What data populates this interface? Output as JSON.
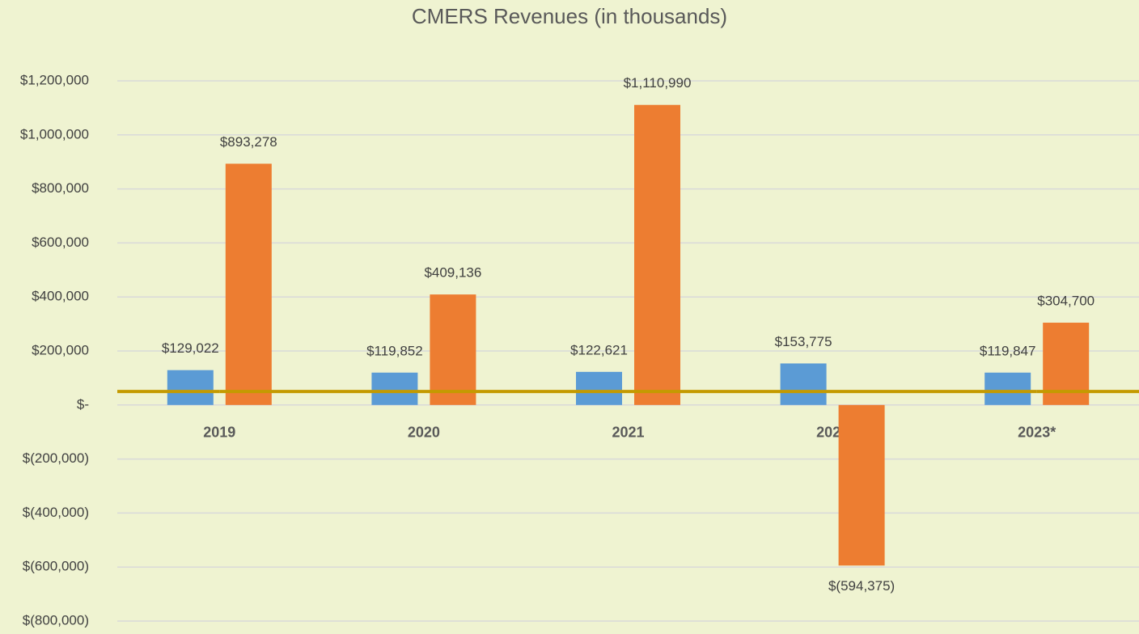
{
  "chart_data": {
    "type": "bar",
    "title": "CMERS Revenues (in thousands)",
    "categories": [
      "2019",
      "2020",
      "2021",
      "2022",
      "2023*"
    ],
    "series": [
      {
        "color": "#5b9bd5",
        "values": [
          129022,
          119852,
          122621,
          153775,
          119847
        ],
        "value_labels": [
          "$129,022",
          "$119,852",
          "$122,621",
          "$153,775",
          "$119,847"
        ]
      },
      {
        "color": "#ed7d31",
        "values": [
          893278,
          409136,
          1110990,
          -594375,
          304700
        ],
        "value_labels": [
          "$893,278",
          "$409,136",
          "$1,110,990",
          "$(594,375)",
          "$304,700"
        ]
      },
      {
        "type": "line",
        "color": "#c49a00",
        "values": [
          50000,
          50000,
          50000,
          50000,
          50000
        ]
      }
    ],
    "ylim": [
      -800000,
      1200000
    ],
    "yticks": [
      {
        "value": -800000,
        "label": "$(800,000)"
      },
      {
        "value": -600000,
        "label": "$(600,000)"
      },
      {
        "value": -400000,
        "label": "$(400,000)"
      },
      {
        "value": -200000,
        "label": "$(200,000)"
      },
      {
        "value": 0,
        "label": "$-"
      },
      {
        "value": 200000,
        "label": "$200,000"
      },
      {
        "value": 400000,
        "label": "$400,000"
      },
      {
        "value": 600000,
        "label": "$600,000"
      },
      {
        "value": 800000,
        "label": "$800,000"
      },
      {
        "value": 1000000,
        "label": "$1,000,000"
      },
      {
        "value": 1200000,
        "label": "$1,200,000"
      }
    ],
    "grid": true
  }
}
